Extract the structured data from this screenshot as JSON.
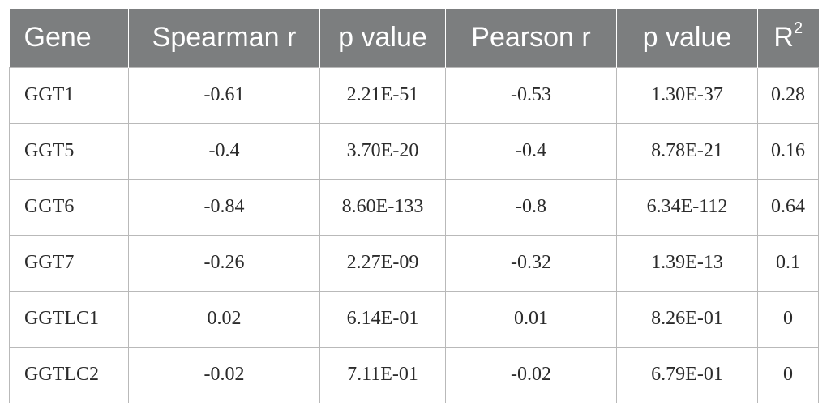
{
  "table": {
    "headers": [
      "Gene",
      "Spearman r",
      "p value",
      "Pearson r",
      "p value",
      "R"
    ],
    "r2_superscript": "2",
    "rows": [
      [
        "GGT1",
        "-0.61",
        "2.21E-51",
        "-0.53",
        "1.30E-37",
        "0.28"
      ],
      [
        "GGT5",
        "-0.4",
        "3.70E-20",
        "-0.4",
        "8.78E-21",
        "0.16"
      ],
      [
        "GGT6",
        "-0.84",
        "8.60E-133",
        "-0.8",
        "6.34E-112",
        "0.64"
      ],
      [
        "GGT7",
        "-0.26",
        "2.27E-09",
        "-0.32",
        "1.39E-13",
        "0.1"
      ],
      [
        "GGTLC1",
        "0.02",
        "6.14E-01",
        "0.01",
        "8.26E-01",
        "0"
      ],
      [
        "GGTLC2",
        "-0.02",
        "7.11E-01",
        "-0.02",
        "6.79E-01",
        "0"
      ]
    ]
  },
  "colors": {
    "header_background": "#7c7e7f",
    "header_text": "#ffffff",
    "body_text": "#2b2b2b",
    "grid_line": "#b9b9b9"
  }
}
